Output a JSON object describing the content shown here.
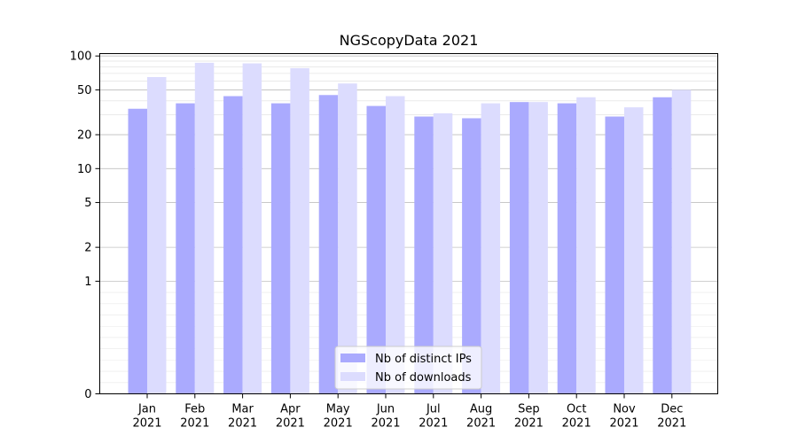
{
  "chart_data": {
    "type": "bar",
    "title": "NGScopyData 2021",
    "xlabel": "",
    "ylabel": "",
    "yscale": "symlog",
    "ylim": [
      0,
      105
    ],
    "yticks": [
      {
        "value": 0,
        "label": "0"
      },
      {
        "value": 1,
        "label": "1"
      },
      {
        "value": 2,
        "label": "2"
      },
      {
        "value": 5,
        "label": "5"
      },
      {
        "value": 10,
        "label": "10"
      },
      {
        "value": 20,
        "label": "20"
      },
      {
        "value": 50,
        "label": "50"
      },
      {
        "value": 100,
        "label": "100"
      }
    ],
    "categories": [
      {
        "month": "Jan",
        "year": "2021"
      },
      {
        "month": "Feb",
        "year": "2021"
      },
      {
        "month": "Mar",
        "year": "2021"
      },
      {
        "month": "Apr",
        "year": "2021"
      },
      {
        "month": "May",
        "year": "2021"
      },
      {
        "month": "Jun",
        "year": "2021"
      },
      {
        "month": "Jul",
        "year": "2021"
      },
      {
        "month": "Aug",
        "year": "2021"
      },
      {
        "month": "Sep",
        "year": "2021"
      },
      {
        "month": "Oct",
        "year": "2021"
      },
      {
        "month": "Nov",
        "year": "2021"
      },
      {
        "month": "Dec",
        "year": "2021"
      }
    ],
    "series": [
      {
        "name": "Nb of distinct IPs",
        "color": "#aaaafe",
        "values": [
          34,
          38,
          44,
          38,
          45,
          36,
          29,
          28,
          39,
          38,
          29,
          43
        ]
      },
      {
        "name": "Nb of downloads",
        "color": "#dcdcfe",
        "values": [
          65,
          87,
          86,
          78,
          57,
          44,
          31,
          38,
          39,
          43,
          35,
          50
        ]
      }
    ],
    "grid": true,
    "legend_position": "bottom-center"
  }
}
